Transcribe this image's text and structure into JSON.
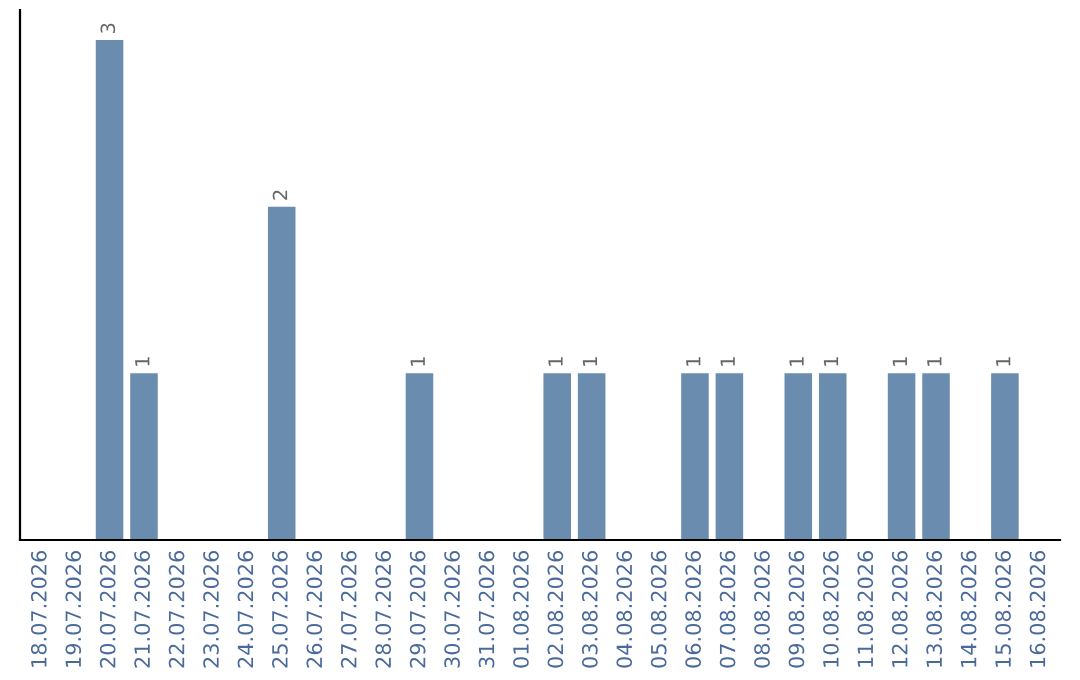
{
  "chart_data": {
    "type": "bar",
    "categories": [
      "18.07.2026",
      "19.07.2026",
      "20.07.2026",
      "21.07.2026",
      "22.07.2026",
      "23.07.2026",
      "24.07.2026",
      "25.07.2026",
      "26.07.2026",
      "27.07.2026",
      "28.07.2026",
      "29.07.2026",
      "30.07.2026",
      "31.07.2026",
      "01.08.2026",
      "02.08.2026",
      "03.08.2026",
      "04.08.2026",
      "05.08.2026",
      "06.08.2026",
      "07.08.2026",
      "08.08.2026",
      "09.08.2026",
      "10.08.2026",
      "11.08.2026",
      "12.08.2026",
      "13.08.2026",
      "14.08.2026",
      "15.08.2026",
      "16.08.2026"
    ],
    "values": [
      0,
      0,
      3,
      1,
      0,
      0,
      0,
      2,
      0,
      0,
      0,
      1,
      0,
      0,
      0,
      1,
      1,
      0,
      0,
      1,
      1,
      0,
      1,
      1,
      0,
      1,
      1,
      0,
      1,
      0
    ],
    "value_labels": [
      null,
      null,
      "3",
      "1",
      null,
      null,
      null,
      "2",
      null,
      null,
      null,
      "1",
      null,
      null,
      null,
      "1",
      "1",
      null,
      null,
      "1",
      "1",
      null,
      "1",
      "1",
      null,
      "1",
      "1",
      null,
      "1",
      null
    ],
    "color": "#6a8caf",
    "tick_labels": "x",
    "grid": false,
    "legend": false
  }
}
